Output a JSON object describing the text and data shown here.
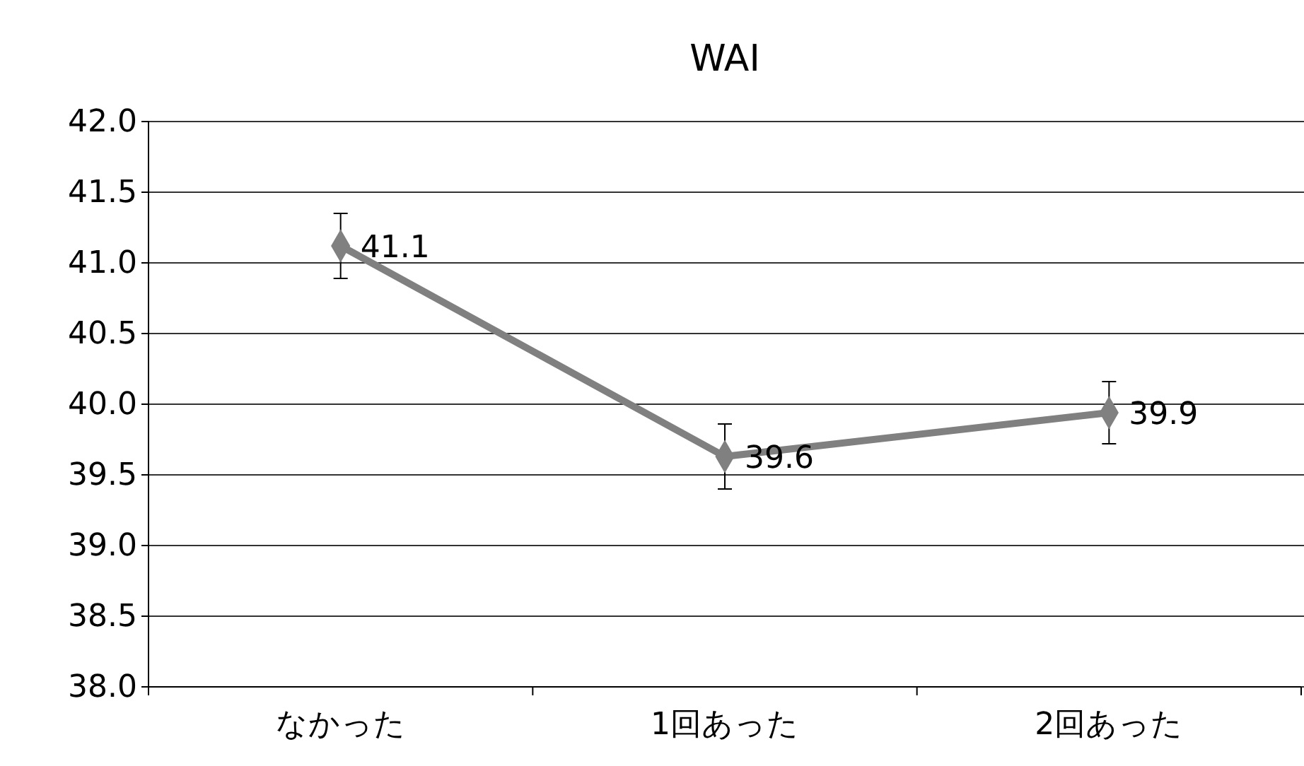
{
  "chart_data": {
    "type": "line",
    "title": "WAI",
    "categories": [
      "なかった",
      "1回あった",
      "2回あった"
    ],
    "series": [
      {
        "color": "#808080",
        "values": [
          41.12,
          39.63,
          39.94
        ],
        "errors": [
          [
            40.89,
            41.35
          ],
          [
            39.4,
            39.86
          ],
          [
            39.72,
            40.16
          ]
        ],
        "value_labels": [
          "41.1",
          "39.6",
          "39.9"
        ]
      }
    ],
    "ylim": [
      38,
      42
    ],
    "yticks": [
      {
        "value": 38,
        "label": "38.0"
      },
      {
        "value": 38.5,
        "label": "38.5"
      },
      {
        "value": 39,
        "label": "39.0"
      },
      {
        "value": 39.5,
        "label": "39.5"
      },
      {
        "value": 40,
        "label": "40.0"
      },
      {
        "value": 40.5,
        "label": "40.5"
      },
      {
        "value": 41,
        "label": "41.0"
      },
      {
        "value": 41.5,
        "label": "41.5"
      },
      {
        "value": 42,
        "label": "42.0"
      }
    ],
    "grid": "y",
    "marker": "diamond",
    "line_style": "solid"
  }
}
